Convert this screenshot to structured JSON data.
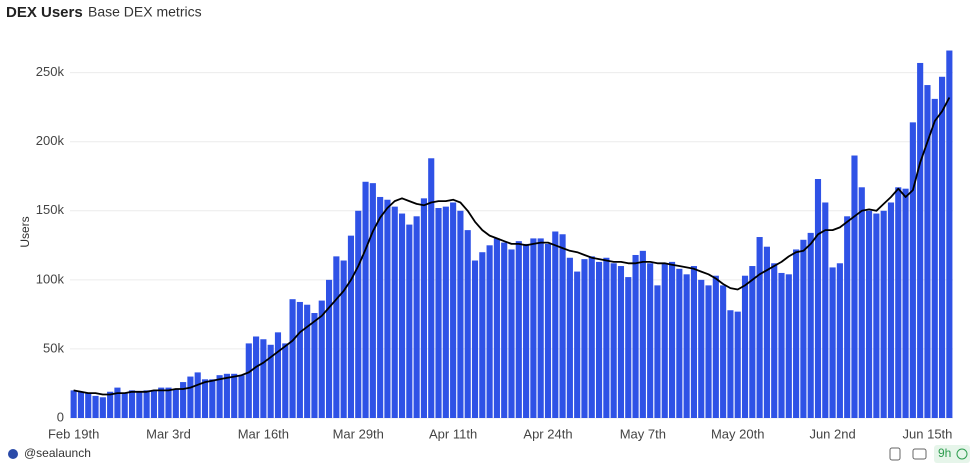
{
  "header": {
    "title": "DEX Users",
    "subtitle": "Base DEX metrics"
  },
  "chart_data": {
    "type": "bar",
    "ylabel": "Users",
    "categories": [
      "Feb 19th",
      null,
      null,
      null,
      null,
      null,
      null,
      null,
      null,
      null,
      null,
      null,
      null,
      "Mar 3rd",
      null,
      null,
      null,
      null,
      null,
      null,
      null,
      null,
      null,
      null,
      null,
      null,
      "Mar 16th",
      null,
      null,
      null,
      null,
      null,
      null,
      null,
      null,
      null,
      null,
      null,
      null,
      "Mar 29th",
      null,
      null,
      null,
      null,
      null,
      null,
      null,
      null,
      null,
      null,
      null,
      null,
      "Apr 11th",
      null,
      null,
      null,
      null,
      null,
      null,
      null,
      null,
      null,
      null,
      null,
      null,
      "Apr 24th",
      null,
      null,
      null,
      null,
      null,
      null,
      null,
      null,
      null,
      null,
      null,
      null,
      "May 7th",
      null,
      null,
      null,
      null,
      null,
      null,
      null,
      null,
      null,
      null,
      null,
      null,
      "May 20th",
      null,
      null,
      null,
      null,
      null,
      null,
      null,
      null,
      null,
      null,
      null,
      null,
      "Jun 2nd",
      null,
      null,
      null,
      null,
      null,
      null,
      null,
      null,
      null,
      null,
      null,
      null,
      "Jun 15th",
      null,
      null,
      null
    ],
    "series": [
      {
        "type": "bar",
        "color": "#2f52e6",
        "values": [
          20000,
          19000,
          18000,
          16000,
          15000,
          19000,
          22000,
          18000,
          20000,
          19000,
          20000,
          20000,
          22000,
          22000,
          21000,
          26000,
          30000,
          33000,
          28000,
          28000,
          31000,
          32000,
          32000,
          31000,
          54000,
          59000,
          57000,
          53000,
          62000,
          54000,
          86000,
          84000,
          82000,
          76000,
          85000,
          100000,
          117000,
          114000,
          132000,
          150000,
          171000,
          170000,
          160000,
          158000,
          153000,
          148000,
          140000,
          146000,
          159000,
          188000,
          152000,
          153000,
          156000,
          150000,
          136000,
          114000,
          120000,
          125000,
          130000,
          127000,
          122000,
          128000,
          126000,
          130000,
          130000,
          126000,
          135000,
          133000,
          116000,
          106000,
          115000,
          117000,
          113000,
          116000,
          112000,
          110000,
          102000,
          118000,
          121000,
          112000,
          96000,
          112000,
          113000,
          108000,
          104000,
          110000,
          100000,
          96000,
          103000,
          96000,
          78000,
          77000,
          103000,
          110000,
          131000,
          124000,
          112000,
          105000,
          104000,
          122000,
          129000,
          134000,
          173000,
          156000,
          109000,
          112000,
          146000,
          190000,
          167000,
          150000,
          148000,
          150000,
          156000,
          167000,
          166000,
          214000,
          257000,
          241000,
          231000,
          247000,
          266000
        ]
      },
      {
        "type": "line",
        "color": "#000000",
        "values": [
          20000,
          19000,
          18000,
          18000,
          17000,
          17000,
          18000,
          18000,
          19000,
          19000,
          19000,
          20000,
          20000,
          20000,
          21000,
          21000,
          22000,
          24000,
          26000,
          27000,
          28000,
          29000,
          30000,
          31000,
          33000,
          37000,
          40000,
          44000,
          48000,
          52000,
          56000,
          62000,
          66000,
          70000,
          74000,
          80000,
          86000,
          92000,
          100000,
          110000,
          122000,
          135000,
          145000,
          152000,
          157000,
          159000,
          157000,
          155000,
          154000,
          156000,
          157000,
          157000,
          158000,
          156000,
          150000,
          142000,
          136000,
          132000,
          130000,
          128000,
          126000,
          126000,
          125000,
          126000,
          127000,
          127000,
          125000,
          123000,
          121000,
          120000,
          118000,
          116000,
          115000,
          114000,
          113000,
          113000,
          112000,
          112000,
          113000,
          113000,
          112000,
          112000,
          111000,
          110000,
          109000,
          108000,
          106000,
          104000,
          101000,
          97000,
          94000,
          93000,
          96000,
          100000,
          104000,
          107000,
          110000,
          113000,
          117000,
          120000,
          121000,
          126000,
          133000,
          136000,
          136000,
          138000,
          142000,
          146000,
          150000,
          151000,
          150000,
          155000,
          160000,
          166000,
          160000,
          165000,
          185000,
          200000,
          215000,
          222000,
          232000
        ]
      }
    ],
    "ylim": [
      0,
      270000
    ],
    "yticks": [
      0,
      {
        "value": 50000,
        "label": "50k"
      },
      {
        "value": 100000,
        "label": "100k"
      },
      {
        "value": 150000,
        "label": "150k"
      },
      {
        "value": 200000,
        "label": "200k"
      },
      {
        "value": 250000,
        "label": "250k"
      }
    ],
    "grid": true
  },
  "footer": {
    "handle": "@sealaunch",
    "age": "9h"
  }
}
